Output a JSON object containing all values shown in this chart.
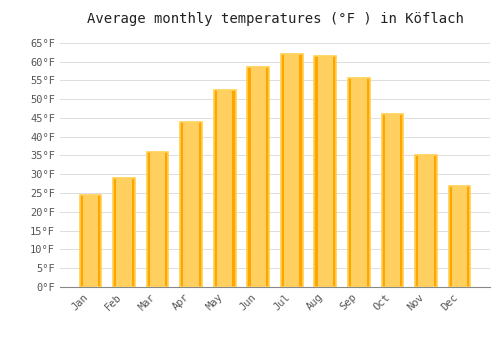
{
  "title": "Average monthly temperatures (°F ) in Köflach",
  "months": [
    "Jan",
    "Feb",
    "Mar",
    "Apr",
    "May",
    "Jun",
    "Jul",
    "Aug",
    "Sep",
    "Oct",
    "Nov",
    "Dec"
  ],
  "values": [
    24.5,
    29.0,
    36.0,
    44.0,
    52.5,
    58.5,
    62.0,
    61.5,
    55.5,
    46.0,
    35.0,
    27.0
  ],
  "bar_color_main": "#FFA500",
  "bar_color_edge": "#FFD050",
  "background_color": "#FFFFFF",
  "grid_color": "#DDDDDD",
  "ylim": [
    0,
    68
  ],
  "yticks": [
    0,
    5,
    10,
    15,
    20,
    25,
    30,
    35,
    40,
    45,
    50,
    55,
    60,
    65
  ],
  "ytick_labels": [
    "0°F",
    "5°F",
    "10°F",
    "15°F",
    "20°F",
    "25°F",
    "30°F",
    "35°F",
    "40°F",
    "45°F",
    "50°F",
    "55°F",
    "60°F",
    "65°F"
  ],
  "title_fontsize": 10,
  "tick_fontsize": 7.5,
  "font_family": "monospace",
  "xtick_rotation": 45
}
